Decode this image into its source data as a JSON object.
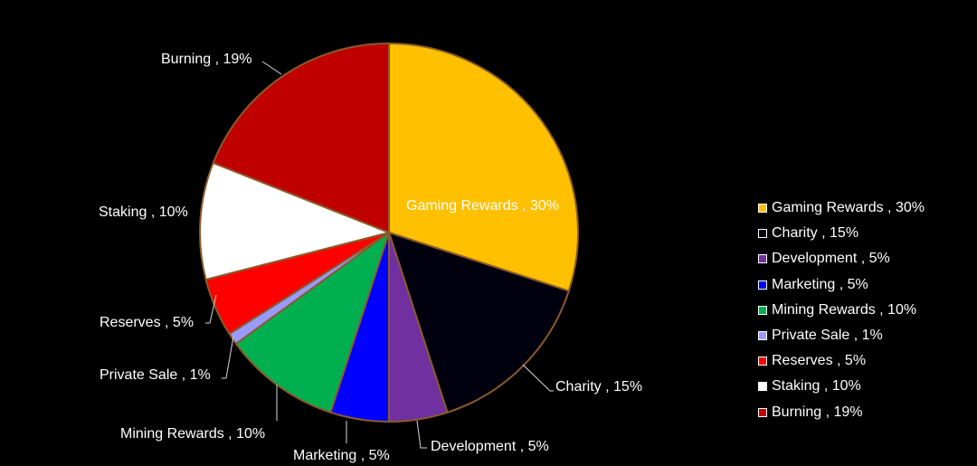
{
  "chart_data": {
    "type": "pie",
    "title": "",
    "slices": [
      {
        "label": "Gaming Rewards , 30%",
        "value": 30,
        "color": "#FFC000"
      },
      {
        "label": "Charity , 15%",
        "value": 15,
        "color": "#00000F"
      },
      {
        "label": "Development , 5%",
        "value": 5,
        "color": "#7030A0"
      },
      {
        "label": "Marketing , 5%",
        "value": 5,
        "color": "#0000FF"
      },
      {
        "label": "Mining Rewards , 10%",
        "value": 10,
        "color": "#00B050"
      },
      {
        "label": "Private Sale , 1%",
        "value": 1,
        "color": "#9999FF"
      },
      {
        "label": "Reserves , 5%",
        "value": 5,
        "color": "#FF0000"
      },
      {
        "label": "Staking , 10%",
        "value": 10,
        "color": "#FFFFFF"
      },
      {
        "label": "Burning , 19%",
        "value": 19,
        "color": "#C00000"
      }
    ],
    "start_angle": "12 o'clock, clockwise",
    "slice_border_color": "#8B5A2B",
    "background": "#000000",
    "legend_position": "right"
  }
}
